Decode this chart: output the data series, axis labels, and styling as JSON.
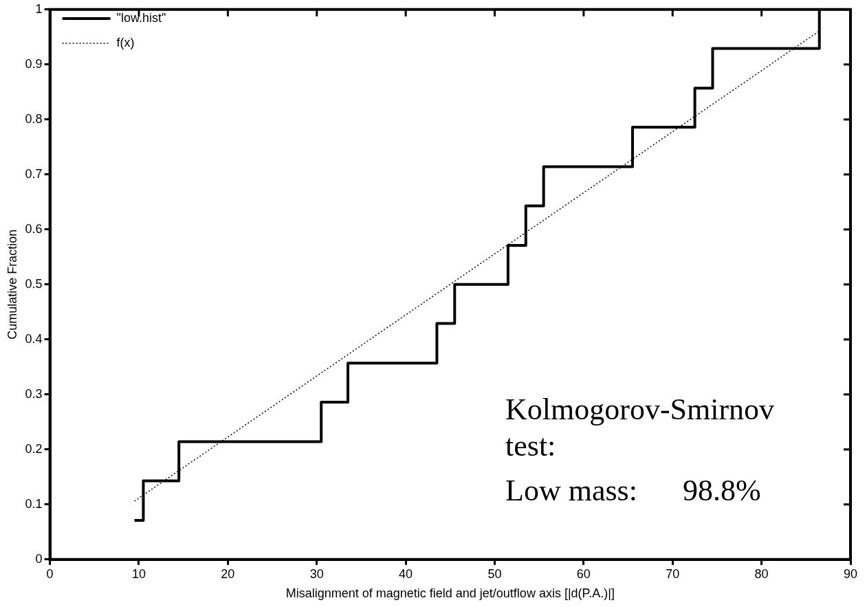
{
  "chart_data": {
    "type": "step",
    "xlabel": "Misalignment of magnetic field and jet/outflow axis [|d(P.A.)|]",
    "ylabel": "Cumulative Fraction",
    "xlim": [
      0,
      90
    ],
    "xticks": [
      0,
      10,
      20,
      30,
      40,
      50,
      60,
      70,
      80,
      90
    ],
    "ylim": [
      0,
      1
    ],
    "yticks": [
      0,
      0.1,
      0.2,
      0.3,
      0.4,
      0.5,
      0.6,
      0.7,
      0.8,
      0.9,
      1
    ],
    "grid": false,
    "legend": "top left",
    "series": [
      {
        "name": "\"low.hist\"",
        "color": "#000000",
        "line_style": "solid",
        "x": [
          9.5,
          10.5,
          14.5,
          30.5,
          33.5,
          43.5,
          45.5,
          51.5,
          53.5,
          55.5,
          65.5,
          72.5,
          74.5,
          86.5
        ],
        "values": [
          0.071,
          0.143,
          0.214,
          0.286,
          0.357,
          0.429,
          0.5,
          0.571,
          0.643,
          0.714,
          0.786,
          0.857,
          0.929,
          1
        ]
      },
      {
        "name": "f(x)",
        "type": "line",
        "color": "#000000",
        "line_style": "dotted",
        "x": [
          9.5,
          86.5
        ],
        "values": [
          0.106,
          0.961
        ]
      }
    ],
    "annotations": [
      "Kolmogorov-Smirnov test:",
      "Low mass:      98.8%"
    ]
  }
}
